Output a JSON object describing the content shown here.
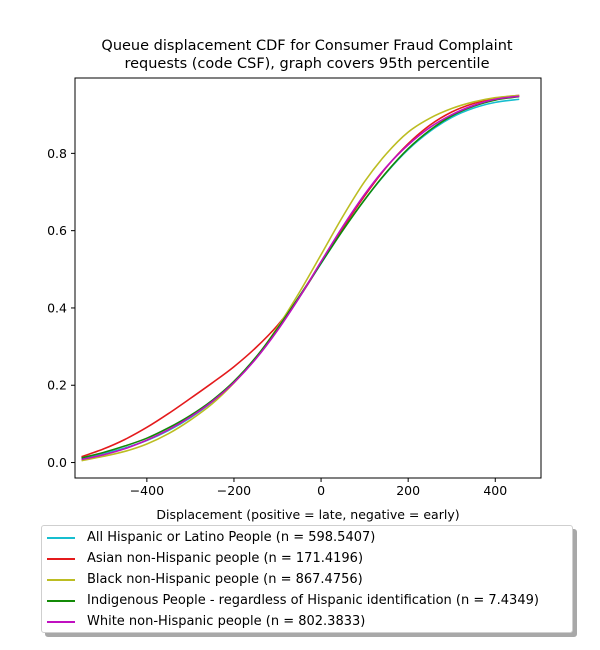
{
  "chart_data": {
    "type": "line",
    "title": "Queue displacement CDF for Consumer Fraud Complaint\nrequests (code CSF), graph covers 95th percentile",
    "xlabel": "Displacement (positive = late, negative = early)",
    "ylabel": "",
    "xlim": [
      -565,
      505
    ],
    "ylim": [
      -0.04,
      0.995
    ],
    "x_ticks": [
      -400,
      -200,
      0,
      200,
      400
    ],
    "x_tick_labels": [
      "−400",
      "−200",
      "0",
      "200",
      "400"
    ],
    "y_ticks": [
      0.0,
      0.2,
      0.4,
      0.6,
      0.8
    ],
    "y_tick_labels": [
      "0.0",
      "0.2",
      "0.4",
      "0.6",
      "0.8"
    ],
    "grid": false,
    "legend_position": "below",
    "x": [
      -550,
      -500,
      -450,
      -400,
      -350,
      -300,
      -250,
      -200,
      -150,
      -100,
      -50,
      0,
      50,
      100,
      150,
      200,
      250,
      300,
      350,
      400,
      455
    ],
    "series": [
      {
        "name": "All Hispanic or Latino People (n = 598.5407)",
        "color": "#17becf",
        "values": [
          0.01,
          0.023,
          0.038,
          0.057,
          0.083,
          0.116,
          0.157,
          0.208,
          0.27,
          0.344,
          0.427,
          0.515,
          0.601,
          0.68,
          0.75,
          0.81,
          0.857,
          0.893,
          0.917,
          0.932,
          0.94
        ]
      },
      {
        "name": "Asian non-Hispanic people (n = 171.4196)",
        "color": "#e41a1c",
        "values": [
          0.015,
          0.035,
          0.06,
          0.091,
          0.127,
          0.166,
          0.206,
          0.248,
          0.297,
          0.355,
          0.428,
          0.517,
          0.607,
          0.69,
          0.764,
          0.825,
          0.873,
          0.907,
          0.929,
          0.943,
          0.95
        ]
      },
      {
        "name": "Black non-Hispanic people (n = 867.4756)",
        "color": "#bcbd22",
        "values": [
          0.005,
          0.016,
          0.029,
          0.048,
          0.075,
          0.11,
          0.152,
          0.206,
          0.27,
          0.35,
          0.44,
          0.538,
          0.637,
          0.727,
          0.799,
          0.855,
          0.891,
          0.916,
          0.933,
          0.944,
          0.95
        ]
      },
      {
        "name": "Indigenous People - regardless of Hispanic identification (n = 7.4349)",
        "color": "#138a07",
        "values": [
          0.012,
          0.026,
          0.043,
          0.063,
          0.09,
          0.122,
          0.161,
          0.21,
          0.272,
          0.347,
          0.43,
          0.516,
          0.601,
          0.68,
          0.751,
          0.812,
          0.86,
          0.897,
          0.922,
          0.938,
          0.947
        ]
      },
      {
        "name": "White non-Hispanic people (n = 802.3833)",
        "color": "#c010c0",
        "values": [
          0.008,
          0.02,
          0.036,
          0.058,
          0.085,
          0.118,
          0.158,
          0.207,
          0.268,
          0.342,
          0.427,
          0.52,
          0.611,
          0.694,
          0.765,
          0.822,
          0.867,
          0.9,
          0.924,
          0.94,
          0.948
        ]
      }
    ]
  }
}
